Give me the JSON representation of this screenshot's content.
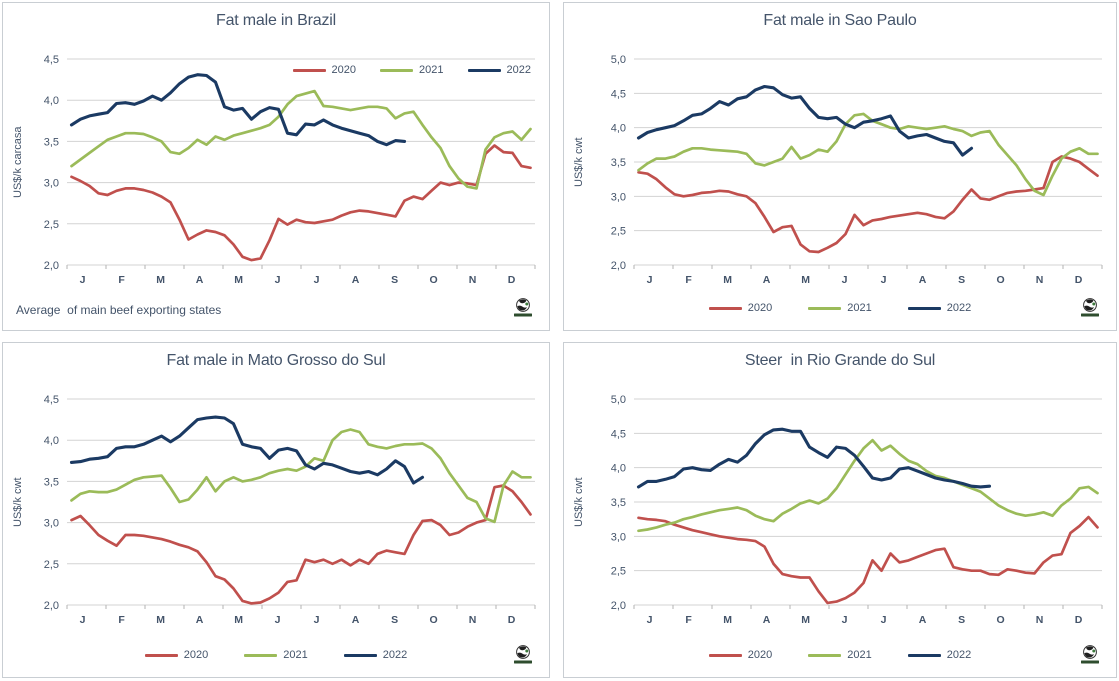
{
  "colors": {
    "background": "#ffffff",
    "panel_border": "#c9ced3",
    "grid": "#d3d3d3",
    "tick_mark": "#b3b3b3",
    "axis_text": "#44546a",
    "title_text": "#44546a",
    "series_2020": "#c0504d",
    "series_2021": "#9bbb59",
    "series_2022": "#1b3a63"
  },
  "x_axis": {
    "labels": [
      "J",
      "F",
      "M",
      "A",
      "M",
      "J",
      "J",
      "A",
      "S",
      "O",
      "N",
      "D"
    ],
    "points_per_year": 52
  },
  "chart_data": [
    {
      "type": "line",
      "title": "Fat male in Brazil",
      "ylabel": "US$/k carcasa",
      "footnote": "Average  of main beef exporting states",
      "legend_position": "top-right",
      "logo_icon": "globe-icon",
      "ylim": [
        2.0,
        4.5
      ],
      "ytick_labels": [
        "4,5",
        "4,0",
        "3,5",
        "3,0",
        "2,5",
        "2,0"
      ],
      "x_labels": [
        "J",
        "F",
        "M",
        "A",
        "M",
        "J",
        "J",
        "A",
        "S",
        "O",
        "N",
        "D"
      ],
      "series": [
        {
          "name": "2020",
          "color": "#c0504d",
          "values": [
            3.07,
            3.02,
            2.96,
            2.87,
            2.85,
            2.9,
            2.93,
            2.93,
            2.91,
            2.88,
            2.83,
            2.76,
            2.55,
            2.31,
            2.37,
            2.42,
            2.4,
            2.36,
            2.25,
            2.1,
            2.06,
            2.08,
            2.3,
            2.56,
            2.49,
            2.55,
            2.52,
            2.51,
            2.53,
            2.55,
            2.6,
            2.64,
            2.66,
            2.65,
            2.63,
            2.61,
            2.59,
            2.78,
            2.83,
            2.8,
            2.9,
            3.0,
            2.97,
            3.0,
            2.99,
            2.97,
            3.35,
            3.45,
            3.37,
            3.36,
            3.2,
            3.18
          ]
        },
        {
          "name": "2021",
          "color": "#9bbb59",
          "values": [
            3.2,
            3.28,
            3.36,
            3.44,
            3.52,
            3.56,
            3.6,
            3.6,
            3.59,
            3.55,
            3.5,
            3.37,
            3.35,
            3.42,
            3.52,
            3.46,
            3.56,
            3.52,
            3.57,
            3.6,
            3.63,
            3.66,
            3.7,
            3.8,
            3.95,
            4.05,
            4.08,
            4.11,
            3.93,
            3.92,
            3.9,
            3.88,
            3.9,
            3.92,
            3.92,
            3.9,
            3.78,
            3.84,
            3.86,
            3.7,
            3.55,
            3.42,
            3.2,
            3.05,
            2.95,
            2.93,
            3.4,
            3.55,
            3.6,
            3.62,
            3.52,
            3.65
          ]
        },
        {
          "name": "2022",
          "color": "#1b3a63",
          "values": [
            3.7,
            3.77,
            3.81,
            3.83,
            3.85,
            3.96,
            3.97,
            3.95,
            3.99,
            4.05,
            4.0,
            4.09,
            4.2,
            4.28,
            4.31,
            4.3,
            4.22,
            3.92,
            3.88,
            3.9,
            3.77,
            3.86,
            3.91,
            3.89,
            3.6,
            3.58,
            3.71,
            3.7,
            3.76,
            3.7,
            3.66,
            3.63,
            3.6,
            3.57,
            3.5,
            3.46,
            3.51,
            3.5
          ]
        }
      ]
    },
    {
      "type": "line",
      "title": "Fat male in Sao Paulo",
      "ylabel": "US$/k cwt",
      "footnote": null,
      "legend_position": "bottom-center",
      "logo_icon": "globe-icon",
      "ylim": [
        2.0,
        5.0
      ],
      "ytick_labels": [
        "5,0",
        "4,5",
        "4,0",
        "3,5",
        "3,0",
        "2,5",
        "2,0"
      ],
      "x_labels": [
        "J",
        "F",
        "M",
        "A",
        "M",
        "J",
        "J",
        "A",
        "S",
        "O",
        "N",
        "D"
      ],
      "series": [
        {
          "name": "2020",
          "color": "#c0504d",
          "values": [
            3.35,
            3.33,
            3.25,
            3.13,
            3.03,
            3.0,
            3.02,
            3.05,
            3.06,
            3.08,
            3.07,
            3.03,
            3.0,
            2.9,
            2.7,
            2.48,
            2.55,
            2.57,
            2.3,
            2.2,
            2.19,
            2.25,
            2.32,
            2.45,
            2.73,
            2.58,
            2.65,
            2.67,
            2.7,
            2.72,
            2.74,
            2.76,
            2.74,
            2.7,
            2.68,
            2.78,
            2.95,
            3.1,
            2.97,
            2.95,
            3.0,
            3.05,
            3.07,
            3.08,
            3.1,
            3.12,
            3.5,
            3.58,
            3.55,
            3.5,
            3.4,
            3.3
          ]
        },
        {
          "name": "2021",
          "color": "#9bbb59",
          "values": [
            3.38,
            3.48,
            3.55,
            3.55,
            3.58,
            3.65,
            3.7,
            3.7,
            3.68,
            3.67,
            3.66,
            3.65,
            3.62,
            3.48,
            3.45,
            3.5,
            3.55,
            3.72,
            3.55,
            3.6,
            3.68,
            3.65,
            3.8,
            4.05,
            4.18,
            4.2,
            4.1,
            4.05,
            4.0,
            3.98,
            4.02,
            4.0,
            3.98,
            4.0,
            4.02,
            3.98,
            3.95,
            3.88,
            3.93,
            3.95,
            3.75,
            3.6,
            3.45,
            3.25,
            3.08,
            3.02,
            3.3,
            3.55,
            3.65,
            3.7,
            3.62,
            3.62
          ]
        },
        {
          "name": "2022",
          "color": "#1b3a63",
          "values": [
            3.85,
            3.93,
            3.97,
            4.0,
            4.03,
            4.1,
            4.18,
            4.2,
            4.28,
            4.38,
            4.33,
            4.42,
            4.45,
            4.55,
            4.6,
            4.58,
            4.48,
            4.43,
            4.45,
            4.28,
            4.15,
            4.13,
            4.15,
            4.05,
            4.0,
            4.08,
            4.1,
            4.13,
            4.17,
            3.95,
            3.85,
            3.88,
            3.9,
            3.85,
            3.8,
            3.78,
            3.6,
            3.7
          ]
        }
      ]
    },
    {
      "type": "line",
      "title": "Fat male in Mato Grosso do Sul",
      "ylabel": "US$/k cwt",
      "footnote": null,
      "legend_position": "bottom-center",
      "logo_icon": "globe-icon",
      "ylim": [
        2.0,
        4.5
      ],
      "ytick_labels": [
        "4,5",
        "4,0",
        "3,5",
        "3,0",
        "2,5",
        "2,0"
      ],
      "x_labels": [
        "J",
        "F",
        "M",
        "A",
        "M",
        "J",
        "J",
        "A",
        "S",
        "O",
        "N",
        "D"
      ],
      "series": [
        {
          "name": "2020",
          "color": "#c0504d",
          "values": [
            3.03,
            3.08,
            2.97,
            2.85,
            2.78,
            2.72,
            2.85,
            2.85,
            2.84,
            2.82,
            2.8,
            2.77,
            2.73,
            2.7,
            2.65,
            2.52,
            2.35,
            2.31,
            2.2,
            2.05,
            2.02,
            2.03,
            2.08,
            2.15,
            2.28,
            2.3,
            2.55,
            2.52,
            2.55,
            2.5,
            2.55,
            2.48,
            2.55,
            2.5,
            2.62,
            2.66,
            2.64,
            2.62,
            2.85,
            3.02,
            3.03,
            2.97,
            2.85,
            2.88,
            2.95,
            3.0,
            3.03,
            3.43,
            3.45,
            3.38,
            3.25,
            3.1
          ]
        },
        {
          "name": "2021",
          "color": "#9bbb59",
          "values": [
            3.27,
            3.35,
            3.38,
            3.37,
            3.37,
            3.4,
            3.46,
            3.52,
            3.55,
            3.56,
            3.57,
            3.42,
            3.25,
            3.28,
            3.4,
            3.55,
            3.38,
            3.5,
            3.55,
            3.5,
            3.52,
            3.55,
            3.6,
            3.63,
            3.65,
            3.63,
            3.68,
            3.78,
            3.75,
            4.0,
            4.1,
            4.13,
            4.1,
            3.95,
            3.92,
            3.9,
            3.93,
            3.95,
            3.95,
            3.96,
            3.9,
            3.78,
            3.6,
            3.45,
            3.3,
            3.25,
            3.05,
            3.01,
            3.45,
            3.62,
            3.55,
            3.55
          ]
        },
        {
          "name": "2022",
          "color": "#1b3a63",
          "values": [
            3.73,
            3.74,
            3.77,
            3.78,
            3.8,
            3.9,
            3.92,
            3.92,
            3.95,
            4.0,
            4.05,
            3.98,
            4.05,
            4.15,
            4.25,
            4.27,
            4.28,
            4.27,
            4.2,
            3.95,
            3.92,
            3.9,
            3.78,
            3.88,
            3.9,
            3.87,
            3.7,
            3.65,
            3.72,
            3.7,
            3.66,
            3.62,
            3.6,
            3.62,
            3.58,
            3.65,
            3.75,
            3.68,
            3.48,
            3.55
          ]
        }
      ]
    },
    {
      "type": "line",
      "title": "Steer  in Rio Grande do Sul",
      "ylabel": "US$/k cwt",
      "footnote": null,
      "legend_position": "bottom-center",
      "logo_icon": "globe-icon",
      "ylim": [
        2.0,
        5.0
      ],
      "ytick_labels": [
        "5,0",
        "4,5",
        "4,0",
        "3,5",
        "3,0",
        "2,5",
        "2,0"
      ],
      "x_labels": [
        "J",
        "F",
        "M",
        "A",
        "M",
        "J",
        "J",
        "A",
        "S",
        "O",
        "N",
        "D"
      ],
      "series": [
        {
          "name": "2020",
          "color": "#c0504d",
          "values": [
            3.27,
            3.25,
            3.24,
            3.22,
            3.17,
            3.13,
            3.09,
            3.06,
            3.03,
            3.0,
            2.98,
            2.96,
            2.95,
            2.93,
            2.85,
            2.6,
            2.45,
            2.42,
            2.4,
            2.4,
            2.2,
            2.03,
            2.05,
            2.1,
            2.18,
            2.32,
            2.65,
            2.5,
            2.75,
            2.62,
            2.65,
            2.7,
            2.75,
            2.8,
            2.82,
            2.55,
            2.52,
            2.5,
            2.5,
            2.45,
            2.44,
            2.52,
            2.5,
            2.47,
            2.46,
            2.62,
            2.72,
            2.74,
            3.05,
            3.15,
            3.28,
            3.13
          ]
        },
        {
          "name": "2021",
          "color": "#9bbb59",
          "values": [
            3.08,
            3.1,
            3.13,
            3.17,
            3.2,
            3.25,
            3.28,
            3.32,
            3.35,
            3.38,
            3.4,
            3.42,
            3.38,
            3.3,
            3.25,
            3.22,
            3.33,
            3.4,
            3.48,
            3.52,
            3.48,
            3.55,
            3.7,
            3.9,
            4.1,
            4.28,
            4.4,
            4.25,
            4.32,
            4.2,
            4.1,
            4.05,
            3.95,
            3.88,
            3.85,
            3.8,
            3.75,
            3.7,
            3.65,
            3.55,
            3.45,
            3.38,
            3.33,
            3.3,
            3.32,
            3.35,
            3.3,
            3.45,
            3.55,
            3.7,
            3.72,
            3.63
          ]
        },
        {
          "name": "2022",
          "color": "#1b3a63",
          "values": [
            3.72,
            3.8,
            3.8,
            3.83,
            3.87,
            3.98,
            4.0,
            3.97,
            3.96,
            4.05,
            4.12,
            4.08,
            4.18,
            4.35,
            4.48,
            4.55,
            4.56,
            4.53,
            4.53,
            4.3,
            4.22,
            4.15,
            4.3,
            4.28,
            4.18,
            4.02,
            3.85,
            3.82,
            3.85,
            3.98,
            4.0,
            3.95,
            3.9,
            3.85,
            3.82,
            3.8,
            3.77,
            3.73,
            3.72,
            3.73
          ]
        }
      ]
    }
  ]
}
